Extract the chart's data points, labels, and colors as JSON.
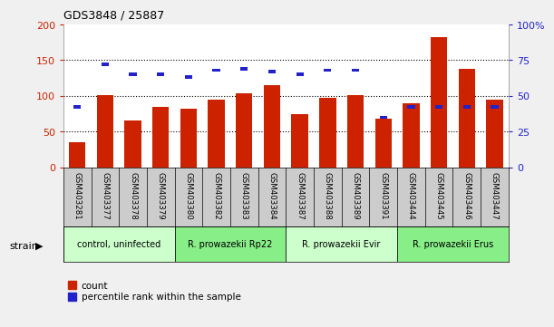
{
  "title": "GDS3848 / 25887",
  "samples": [
    "GSM403281",
    "GSM403377",
    "GSM403378",
    "GSM403379",
    "GSM403380",
    "GSM403382",
    "GSM403383",
    "GSM403384",
    "GSM403387",
    "GSM403388",
    "GSM403389",
    "GSM403391",
    "GSM403444",
    "GSM403445",
    "GSM403446",
    "GSM403447"
  ],
  "count_values": [
    35,
    101,
    65,
    85,
    82,
    95,
    104,
    115,
    75,
    97,
    101,
    68,
    90,
    182,
    138,
    95
  ],
  "percentile_values": [
    42,
    72,
    65,
    65,
    63,
    68,
    69,
    67,
    65,
    68,
    68,
    35,
    42,
    42,
    42,
    42
  ],
  "groups": [
    {
      "label": "control, uninfected",
      "start": 0,
      "end": 4
    },
    {
      "label": "R. prowazekii Rp22",
      "start": 4,
      "end": 8
    },
    {
      "label": "R. prowazekii Evir",
      "start": 8,
      "end": 12
    },
    {
      "label": "R. prowazekii Erus",
      "start": 12,
      "end": 16
    }
  ],
  "group_colors": [
    "#ccffcc",
    "#88ee88",
    "#ccffcc",
    "#88ee88"
  ],
  "count_color": "#cc2200",
  "percentile_color": "#2222cc",
  "ylim_left": [
    0,
    200
  ],
  "ylim_right": [
    0,
    100
  ],
  "yticks_left": [
    0,
    50,
    100,
    150,
    200
  ],
  "yticks_right": [
    0,
    25,
    50,
    75,
    100
  ],
  "ytick_labels_right": [
    "0",
    "25",
    "50",
    "75",
    "100%"
  ],
  "background_color": "#f0f0f0",
  "plot_bg": "#ffffff",
  "tick_label_area_color": "#cccccc"
}
